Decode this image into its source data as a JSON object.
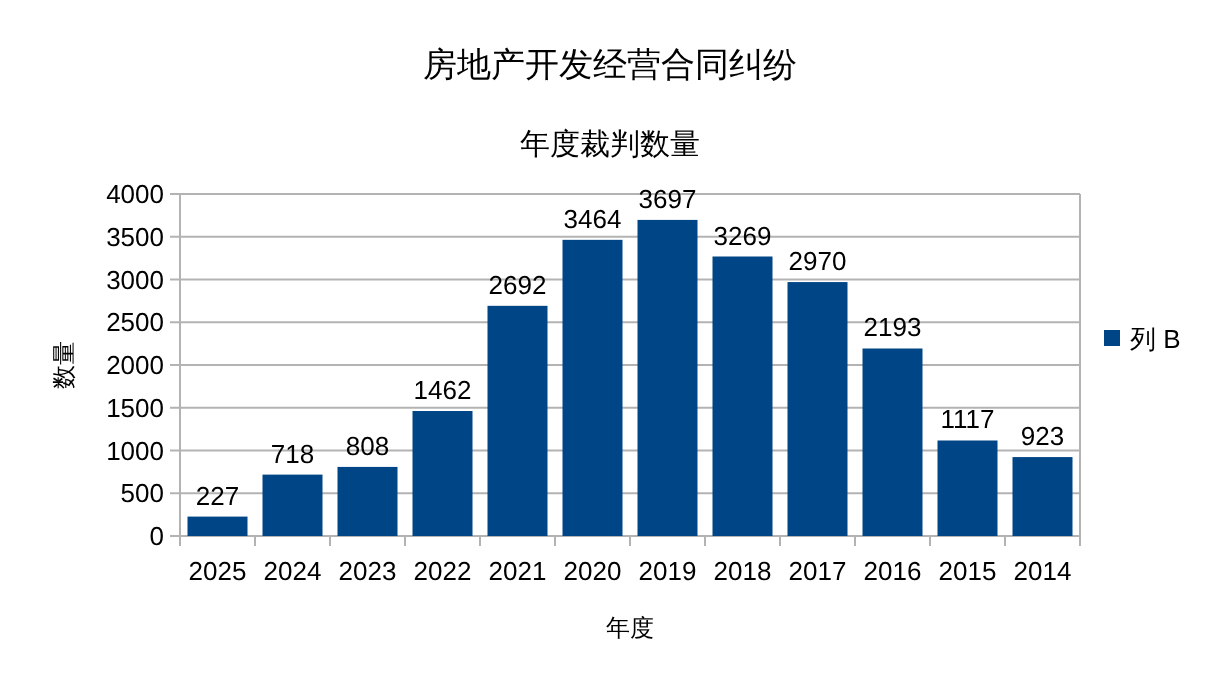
{
  "chart_data": {
    "type": "bar",
    "title": "房地产开发经营合同纠纷",
    "subtitle": "年度裁判数量",
    "xlabel": "年度",
    "ylabel": "数量",
    "categories": [
      "2025",
      "2024",
      "2023",
      "2022",
      "2021",
      "2020",
      "2019",
      "2018",
      "2017",
      "2016",
      "2015",
      "2014"
    ],
    "series": [
      {
        "name": "列 B",
        "color": "#004586",
        "values": [
          227,
          718,
          808,
          1462,
          2692,
          3464,
          3697,
          3269,
          2970,
          2193,
          1117,
          923
        ]
      }
    ],
    "ylim": [
      0,
      4000
    ],
    "yticks": [
      0,
      500,
      1000,
      1500,
      2000,
      2500,
      3000,
      3500,
      4000
    ],
    "grid": "y",
    "legend": "right",
    "data_labels": true
  }
}
